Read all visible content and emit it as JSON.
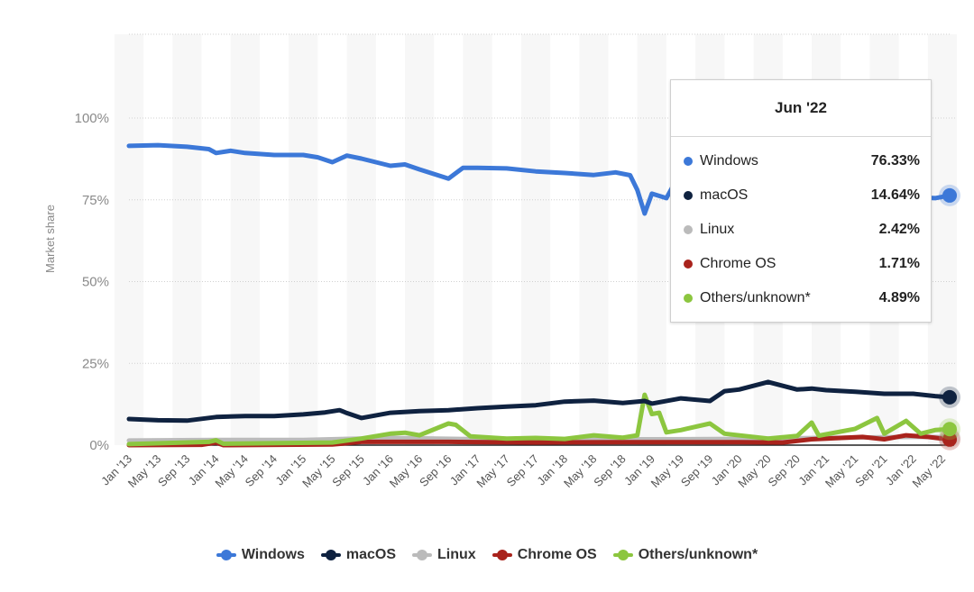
{
  "chart_data": {
    "type": "line",
    "title": "",
    "xlabel": "",
    "ylabel": "Market share",
    "ylim": [
      0,
      100
    ],
    "yticks": [
      "0%",
      "25%",
      "50%",
      "75%",
      "100%"
    ],
    "ytick_values": [
      0,
      25,
      50,
      75,
      100
    ],
    "xticks": [
      "Jan '13",
      "May '13",
      "Sep '13",
      "Jan '14",
      "May '14",
      "Sep '14",
      "Jan '15",
      "May '15",
      "Sep '15",
      "Jan '16",
      "May '16",
      "Sep '16",
      "Jan '17",
      "May '17",
      "Sep '17",
      "Jan '18",
      "May '18",
      "Sep '18",
      "Jan '19",
      "May '19",
      "Sep '19",
      "Jan '20",
      "May '20",
      "Sep '20",
      "Jan '21",
      "May '21",
      "Sep '21",
      "Jan '22",
      "May '22"
    ],
    "xrange": [
      "2013-01",
      "2022-06"
    ],
    "grid": true,
    "legend_position": "bottom",
    "series": [
      {
        "name": "Windows",
        "color": "#3c78d8",
        "points": [
          [
            "2013-01",
            91.5
          ],
          [
            "2013-05",
            91.7
          ],
          [
            "2013-09",
            91.2
          ],
          [
            "2013-12",
            90.5
          ],
          [
            "2014-01",
            89.3
          ],
          [
            "2014-03",
            90
          ],
          [
            "2014-05",
            89.3
          ],
          [
            "2014-09",
            88.7
          ],
          [
            "2015-01",
            88.7
          ],
          [
            "2015-03",
            88
          ],
          [
            "2015-05",
            86.5
          ],
          [
            "2015-07",
            88.5
          ],
          [
            "2015-09",
            87.6
          ],
          [
            "2016-01",
            85.4
          ],
          [
            "2016-03",
            85.8
          ],
          [
            "2016-05",
            84.3
          ],
          [
            "2016-09",
            81.5
          ],
          [
            "2016-11",
            84.8
          ],
          [
            "2017-01",
            84.8
          ],
          [
            "2017-05",
            84.6
          ],
          [
            "2017-09",
            83.7
          ],
          [
            "2018-01",
            83.2
          ],
          [
            "2018-05",
            82.6
          ],
          [
            "2018-08",
            83.4
          ],
          [
            "2018-10",
            82.5
          ],
          [
            "2018-11",
            78
          ],
          [
            "2018-12",
            70.8
          ],
          [
            "2019-01",
            76.9
          ],
          [
            "2019-03",
            75.5
          ],
          [
            "2019-04",
            79.6
          ],
          [
            "2019-09",
            78.5
          ],
          [
            "2020-01",
            77.5
          ],
          [
            "2020-09",
            77
          ],
          [
            "2021-06",
            76.5
          ],
          [
            "2021-12",
            76.2
          ],
          [
            "2022-01",
            75.8
          ],
          [
            "2022-04",
            75.5
          ],
          [
            "2022-06",
            76.33
          ]
        ]
      },
      {
        "name": "macOS",
        "color": "#0f2240",
        "points": [
          [
            "2013-01",
            8.0
          ],
          [
            "2013-05",
            7.6
          ],
          [
            "2013-09",
            7.5
          ],
          [
            "2014-01",
            8.6
          ],
          [
            "2014-05",
            8.9
          ],
          [
            "2014-09",
            8.9
          ],
          [
            "2015-01",
            9.4
          ],
          [
            "2015-04",
            10
          ],
          [
            "2015-06",
            10.7
          ],
          [
            "2015-07",
            9.8
          ],
          [
            "2015-09",
            8.3
          ],
          [
            "2016-01",
            9.9
          ],
          [
            "2016-05",
            10.4
          ],
          [
            "2016-09",
            10.7
          ],
          [
            "2017-01",
            11.3
          ],
          [
            "2017-05",
            11.8
          ],
          [
            "2017-09",
            12.2
          ],
          [
            "2018-01",
            13.3
          ],
          [
            "2018-05",
            13.6
          ],
          [
            "2018-09",
            12.9
          ],
          [
            "2018-12",
            13.5
          ],
          [
            "2019-01",
            12.7
          ],
          [
            "2019-05",
            14.3
          ],
          [
            "2019-09",
            13.5
          ],
          [
            "2019-11",
            16.5
          ],
          [
            "2020-01",
            17
          ],
          [
            "2020-05",
            19.3
          ],
          [
            "2020-09",
            17
          ],
          [
            "2020-11",
            17.3
          ],
          [
            "2021-01",
            16.8
          ],
          [
            "2021-05",
            16.3
          ],
          [
            "2021-09",
            15.7
          ],
          [
            "2022-01",
            15.7
          ],
          [
            "2022-04",
            15
          ],
          [
            "2022-06",
            14.64
          ]
        ]
      },
      {
        "name": "Linux",
        "color": "#bbbbbb",
        "points": [
          [
            "2013-01",
            1.4
          ],
          [
            "2014-01",
            1.6
          ],
          [
            "2015-01",
            1.6
          ],
          [
            "2016-01",
            2.2
          ],
          [
            "2017-01",
            1.8
          ],
          [
            "2018-01",
            1.8
          ],
          [
            "2019-01",
            1.8
          ],
          [
            "2020-01",
            1.9
          ],
          [
            "2021-01",
            2.2
          ],
          [
            "2021-09",
            2.4
          ],
          [
            "2022-01",
            2.5
          ],
          [
            "2022-06",
            2.42
          ]
        ]
      },
      {
        "name": "Chrome OS",
        "color": "#a9231c",
        "points": [
          [
            "2013-01",
            0
          ],
          [
            "2013-11",
            0.1
          ],
          [
            "2014-01",
            0.8
          ],
          [
            "2014-02",
            0
          ],
          [
            "2015-05",
            0.2
          ],
          [
            "2015-09",
            1
          ],
          [
            "2016-09",
            1
          ],
          [
            "2017-09",
            0.8
          ],
          [
            "2018-09",
            0.9
          ],
          [
            "2019-09",
            0.9
          ],
          [
            "2020-01",
            0.9
          ],
          [
            "2020-07",
            0.8
          ],
          [
            "2020-11",
            1.8
          ],
          [
            "2021-06",
            2.5
          ],
          [
            "2021-09",
            1.8
          ],
          [
            "2021-12",
            3
          ],
          [
            "2022-03",
            2.5
          ],
          [
            "2022-06",
            1.71
          ]
        ]
      },
      {
        "name": "Others/unknown*",
        "color": "#8cc63f",
        "points": [
          [
            "2013-01",
            0.3
          ],
          [
            "2013-12",
            1
          ],
          [
            "2014-01",
            1.5
          ],
          [
            "2014-02",
            0.4
          ],
          [
            "2015-05",
            0.8
          ],
          [
            "2015-09",
            2
          ],
          [
            "2016-01",
            3.5
          ],
          [
            "2016-03",
            3.8
          ],
          [
            "2016-05",
            3
          ],
          [
            "2016-09",
            6.6
          ],
          [
            "2016-10",
            6.2
          ],
          [
            "2016-12",
            2.7
          ],
          [
            "2017-05",
            2
          ],
          [
            "2017-09",
            2.2
          ],
          [
            "2018-01",
            1.9
          ],
          [
            "2018-05",
            3
          ],
          [
            "2018-09",
            2.3
          ],
          [
            "2018-11",
            3
          ],
          [
            "2018-12",
            15.4
          ],
          [
            "2019-01",
            9.5
          ],
          [
            "2019-02",
            9.9
          ],
          [
            "2019-03",
            3.9
          ],
          [
            "2019-05",
            4.6
          ],
          [
            "2019-09",
            6.6
          ],
          [
            "2019-11",
            3.5
          ],
          [
            "2020-05",
            2
          ],
          [
            "2020-09",
            2.8
          ],
          [
            "2020-11",
            6.9
          ],
          [
            "2020-12",
            2.9
          ],
          [
            "2021-05",
            5
          ],
          [
            "2021-08",
            8.3
          ],
          [
            "2021-09",
            3.5
          ],
          [
            "2021-12",
            7.4
          ],
          [
            "2022-02",
            3.5
          ],
          [
            "2022-04",
            4.6
          ],
          [
            "2022-06",
            4.89
          ]
        ]
      }
    ]
  },
  "tooltip": {
    "title": "Jun '22",
    "rows": [
      {
        "name": "Windows",
        "value": "76.33%",
        "color": "#3c78d8"
      },
      {
        "name": "macOS",
        "value": "14.64%",
        "color": "#0f2240"
      },
      {
        "name": "Linux",
        "value": "2.42%",
        "color": "#bbbbbb"
      },
      {
        "name": "Chrome OS",
        "value": "1.71%",
        "color": "#a9231c"
      },
      {
        "name": "Others/unknown*",
        "value": "4.89%",
        "color": "#8cc63f"
      }
    ]
  },
  "legend": [
    "Windows",
    "macOS",
    "Linux",
    "Chrome OS",
    "Others/unknown*"
  ]
}
